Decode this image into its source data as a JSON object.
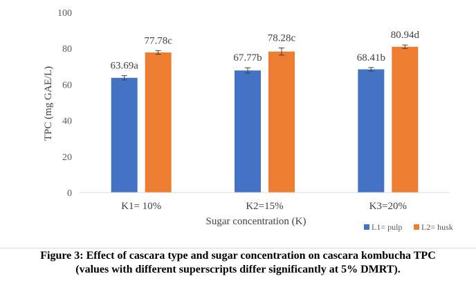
{
  "chart_data": {
    "type": "bar",
    "categories": [
      "K1= 10%",
      "K2=15%",
      "K3=20%"
    ],
    "series": [
      {
        "name": "L1= pulp",
        "color": "#4472c4",
        "values": [
          63.69,
          67.77,
          68.41
        ],
        "errors": [
          1.2,
          1.5,
          1.0
        ],
        "labels": [
          "63.69a",
          "67.77b",
          "68.41b"
        ]
      },
      {
        "name": "L2= husk",
        "color": "#ed7d31",
        "values": [
          77.78,
          78.28,
          80.94
        ],
        "errors": [
          1.0,
          2.0,
          1.0
        ],
        "labels": [
          "77.78c",
          "78.28c",
          "80.94d"
        ]
      }
    ],
    "xlabel": "Sugar concentration (K)",
    "ylabel": "TPC (mg GAE/L)",
    "ylim": [
      0,
      100
    ],
    "yticks": [
      0,
      20,
      40,
      60,
      80,
      100
    ],
    "grid": false,
    "legend_position": "bottom-right"
  },
  "caption": {
    "line1": "Figure 3: Effect of cascara type and sugar concentration on cascara kombucha TPC",
    "line2": "(values with different superscripts differ significantly at 5% DMRT)."
  }
}
